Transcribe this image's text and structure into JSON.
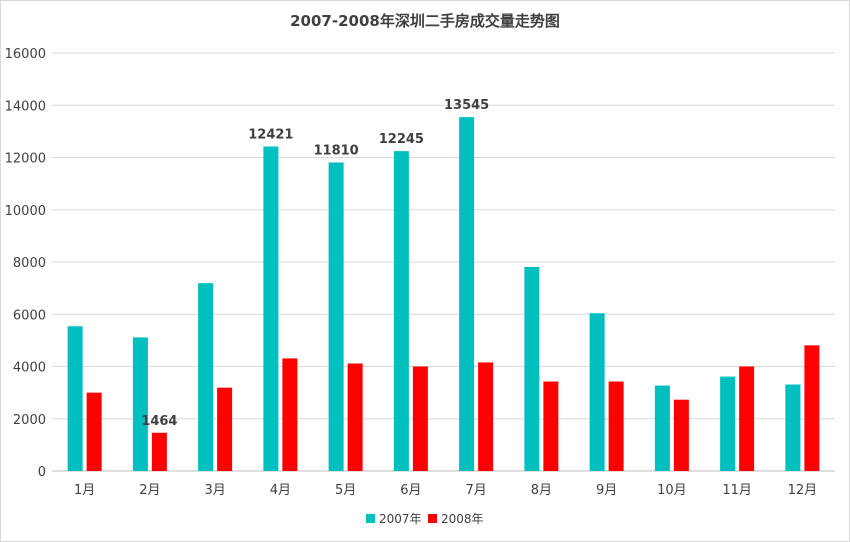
{
  "chart_data": {
    "type": "bar",
    "title": "2007-2008年深圳二手房成交量走势图",
    "categories": [
      "1月",
      "2月",
      "3月",
      "4月",
      "5月",
      "6月",
      "7月",
      "8月",
      "9月",
      "10月",
      "11月",
      "12月"
    ],
    "series": [
      {
        "name": "2007年",
        "color": "#00BFBF",
        "values": [
          5540,
          5115,
          7190,
          12421,
          11810,
          12245,
          13545,
          7810,
          6040,
          3270,
          3615,
          3310
        ],
        "labels": [
          null,
          null,
          null,
          "12421",
          "11810",
          "12245",
          "13545",
          null,
          null,
          null,
          null,
          null
        ]
      },
      {
        "name": "2008年",
        "color": "#FF0000",
        "values": [
          3000,
          1464,
          3190,
          4310,
          4115,
          4000,
          4155,
          3425,
          3425,
          2730,
          4000,
          4810
        ],
        "labels": [
          null,
          "1464",
          null,
          null,
          null,
          null,
          null,
          null,
          null,
          null,
          null,
          null
        ]
      }
    ],
    "ylim": [
      0,
      16000
    ],
    "yticks": [
      "0",
      "2000",
      "4000",
      "6000",
      "8000",
      "10000",
      "12000",
      "14000",
      "16000"
    ],
    "grid": true,
    "legend_position": "bottom"
  }
}
